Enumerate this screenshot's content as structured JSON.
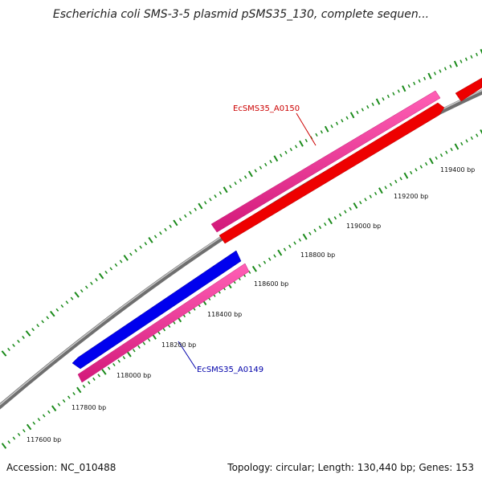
{
  "title": "Escherichia coli SMS-3-5 plasmid pSMS35_130, complete sequen...",
  "footer": {
    "accession": "Accession: NC_010488",
    "summary": "Topology: circular; Length: 130,440 bp; Genes: 153"
  },
  "axis": {
    "unit": "bp",
    "ticks": [
      {
        "label": "117600 bp"
      },
      {
        "label": "117800 bp"
      },
      {
        "label": "118000 bp"
      },
      {
        "label": "118200 bp"
      },
      {
        "label": "118400 bp"
      },
      {
        "label": "118600 bp"
      },
      {
        "label": "118800 bp"
      },
      {
        "label": "119000 bp"
      },
      {
        "label": "119200 bp"
      },
      {
        "label": "119400 bp"
      }
    ]
  },
  "genes": [
    {
      "name": "EcSMS35_A0149",
      "strand": "reverse",
      "cds_color": "#0000ee",
      "gene_color": "#ee2a8f",
      "label_color": "#0000aa"
    },
    {
      "name": "EcSMS35_A0150",
      "strand": "forward",
      "cds_color": "#ee0000",
      "gene_color": "#ee2a8f",
      "label_color": "#cc0000"
    }
  ],
  "colors": {
    "backbone": "#888888",
    "tick_marks": "#1a8a1a"
  }
}
